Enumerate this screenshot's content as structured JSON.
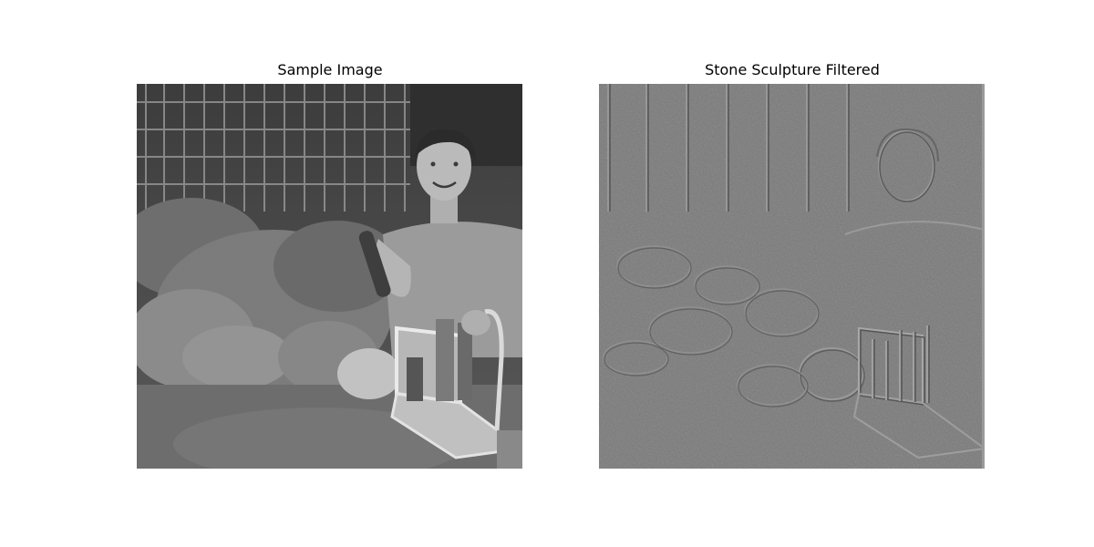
{
  "figure": {
    "panels": [
      {
        "title": "Sample Image"
      },
      {
        "title": "Stone Sculpture Filtered"
      }
    ]
  },
  "colors": {
    "background": "#ffffff",
    "filtered_base_gray": "#7a7a7a"
  }
}
